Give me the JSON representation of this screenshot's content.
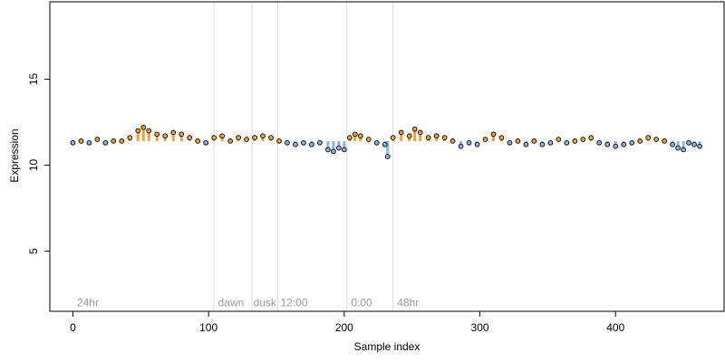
{
  "chart_data": {
    "type": "scatter",
    "title": "",
    "xlabel": "Sample index",
    "ylabel": "Expression",
    "xlim": [
      -17,
      480
    ],
    "ylim": [
      1.5,
      19.5
    ],
    "xticks": [
      0,
      100,
      200,
      300,
      400
    ],
    "yticks": [
      5,
      10,
      15
    ],
    "grid": false,
    "legend": "none",
    "baseline": 11.4,
    "vertical_lines": [
      104,
      132,
      151,
      202,
      236
    ],
    "annotations": [
      {
        "text": "24hr",
        "x": 3
      },
      {
        "text": "dawn",
        "x": 107
      },
      {
        "text": "dusk",
        "x": 133
      },
      {
        "text": "12:00",
        "x": 153
      },
      {
        "text": "0:00",
        "x": 205
      },
      {
        "text": "48hr",
        "x": 239
      }
    ],
    "annotation_y": 2.0,
    "colors": {
      "above": "#e8a33d",
      "below": "#8fb3e0",
      "point_stroke": "#000000",
      "vline": "#dddddd",
      "annotation": "#9a9a9a"
    },
    "series": [
      {
        "x": [
          0,
          6,
          12,
          18,
          24,
          30,
          36,
          42,
          48,
          52,
          56,
          62,
          68,
          74,
          80,
          86,
          92,
          98,
          104,
          110,
          116,
          122,
          128,
          134,
          140,
          146,
          152,
          158,
          164,
          170,
          176,
          182,
          188,
          192,
          196,
          200,
          204,
          208,
          212,
          218,
          224,
          230,
          232,
          236,
          242,
          248,
          252,
          256,
          262,
          268,
          274,
          280,
          286,
          292,
          298,
          304,
          310,
          316,
          322,
          328,
          334,
          340,
          346,
          352,
          358,
          364,
          370,
          376,
          382,
          388,
          394,
          400,
          406,
          412,
          418,
          424,
          430,
          436,
          442,
          446,
          450,
          454,
          458,
          462
        ],
        "y": [
          11.3,
          11.4,
          11.3,
          11.5,
          11.3,
          11.4,
          11.4,
          11.6,
          12.0,
          12.2,
          12.0,
          11.8,
          11.7,
          11.9,
          11.8,
          11.6,
          11.4,
          11.3,
          11.6,
          11.7,
          11.4,
          11.6,
          11.5,
          11.6,
          11.7,
          11.6,
          11.4,
          11.3,
          11.2,
          11.3,
          11.2,
          11.3,
          10.9,
          10.8,
          11.0,
          10.9,
          11.6,
          11.8,
          11.7,
          11.5,
          11.3,
          11.2,
          10.5,
          11.6,
          11.9,
          11.7,
          12.1,
          11.9,
          11.6,
          11.7,
          11.6,
          11.4,
          11.1,
          11.3,
          11.2,
          11.5,
          11.8,
          11.6,
          11.3,
          11.4,
          11.2,
          11.4,
          11.2,
          11.3,
          11.5,
          11.3,
          11.4,
          11.5,
          11.6,
          11.3,
          11.2,
          11.1,
          11.2,
          11.3,
          11.4,
          11.6,
          11.5,
          11.4,
          11.2,
          11.0,
          10.9,
          11.3,
          11.2,
          11.1
        ]
      }
    ]
  }
}
